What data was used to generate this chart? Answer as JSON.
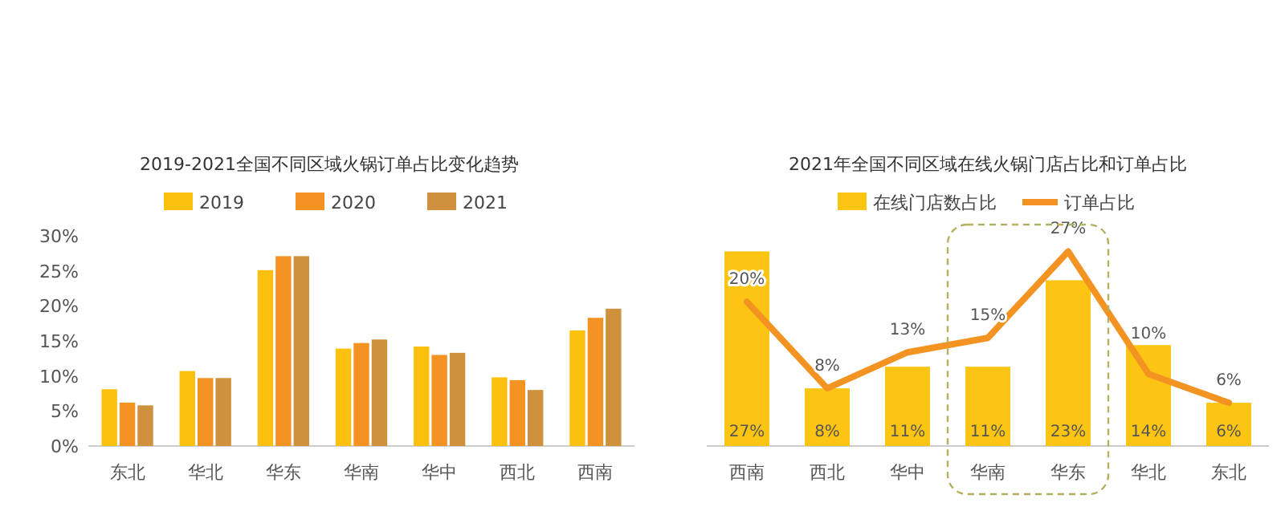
{
  "chart_data": [
    {
      "type": "bar",
      "title": "2019-2021全国不同区域火锅订单占比变化趋势",
      "categories": [
        "东北",
        "华北",
        "华东",
        "华南",
        "华中",
        "西北",
        "西南"
      ],
      "series": [
        {
          "name": "2019",
          "color": "#fcc10e",
          "values": [
            8.1,
            10.7,
            25.1,
            13.9,
            14.2,
            9.8,
            16.5
          ]
        },
        {
          "name": "2020",
          "color": "#f39422",
          "values": [
            6.2,
            9.7,
            27.1,
            14.7,
            13.0,
            9.4,
            18.3
          ]
        },
        {
          "name": "2021",
          "color": "#d0913f",
          "values": [
            5.8,
            9.7,
            27.1,
            15.2,
            13.3,
            8.0,
            19.6
          ]
        }
      ],
      "ylim": [
        0,
        30
      ],
      "yticks": [
        {
          "value": 0,
          "label": "0%"
        },
        {
          "value": 5,
          "label": "5%"
        },
        {
          "value": 10,
          "label": "10%"
        },
        {
          "value": 15,
          "label": "15%"
        },
        {
          "value": 20,
          "label": "20%"
        },
        {
          "value": 25,
          "label": "25%"
        },
        {
          "value": 30,
          "label": "30%"
        }
      ],
      "grid": false,
      "legend": "top"
    },
    {
      "type": "bar",
      "title": "2021年全国不同区域在线火锅门店占比和订单占比",
      "categories": [
        "西南",
        "西北",
        "华中",
        "华南",
        "华东",
        "华北",
        "东北"
      ],
      "series": [
        {
          "name": "在线门店数占比",
          "type": "bar",
          "color": "#fcc514",
          "values": [
            27,
            8,
            11,
            11,
            23,
            14,
            6
          ],
          "value_labels": [
            "27%",
            "8%",
            "11%",
            "11%",
            "23%",
            "14%",
            "6%"
          ]
        },
        {
          "name": "订单占比",
          "type": "line",
          "color": "#f39422",
          "values": [
            20,
            8,
            13,
            15,
            27,
            10,
            6
          ],
          "value_labels": [
            "20%",
            "8%",
            "13%",
            "15%",
            "27%",
            "10%",
            "6%"
          ]
        }
      ],
      "grid": false,
      "legend": "top",
      "tick_labels": "x"
    }
  ]
}
